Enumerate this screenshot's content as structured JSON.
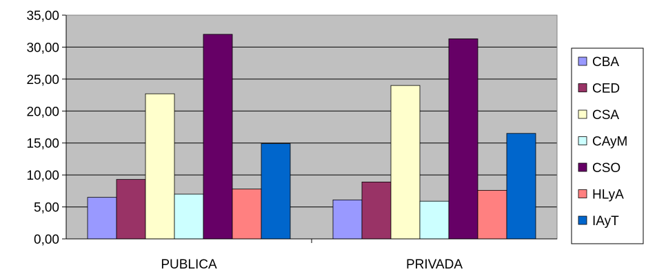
{
  "chart_data": {
    "type": "bar",
    "title": "",
    "xlabel": "",
    "ylabel": "",
    "categories": [
      "PUBLICA",
      "PRIVADA"
    ],
    "series": [
      {
        "name": "CBA",
        "values": [
          6.5,
          6.1
        ],
        "color": "#9999ff"
      },
      {
        "name": "CED",
        "values": [
          9.3,
          8.9
        ],
        "color": "#993366"
      },
      {
        "name": "CSA",
        "values": [
          22.7,
          24.0
        ],
        "color": "#ffffcc"
      },
      {
        "name": "CAyM",
        "values": [
          7.0,
          5.9
        ],
        "color": "#ccffff"
      },
      {
        "name": "CSO",
        "values": [
          32.0,
          31.3
        ],
        "color": "#660066"
      },
      {
        "name": "HLyA",
        "values": [
          7.8,
          7.6
        ],
        "color": "#ff8080"
      },
      {
        "name": "IAyT",
        "values": [
          14.9,
          16.5
        ],
        "color": "#0066cc"
      }
    ],
    "ylim": [
      0,
      35
    ],
    "yticks": [
      "0,00",
      "5,00",
      "10,00",
      "15,00",
      "20,00",
      "25,00",
      "30,00",
      "35,00"
    ],
    "ytick_step": 5,
    "grid": true,
    "plot_background": "#c0c0c0",
    "legend_position": "right"
  }
}
